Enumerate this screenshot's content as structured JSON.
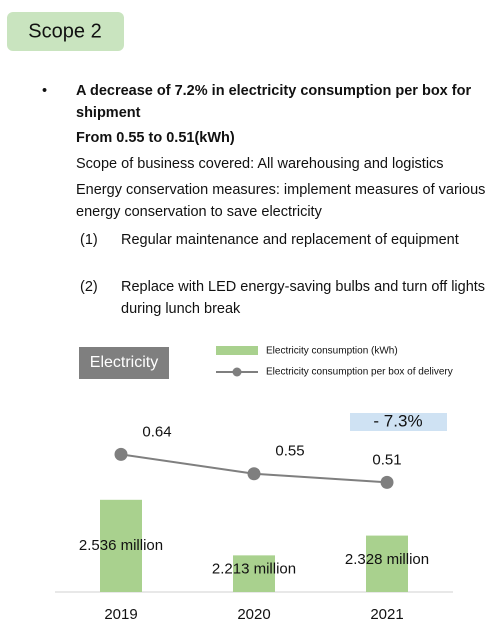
{
  "header": {
    "title": "Scope 2"
  },
  "highlights": {
    "headline": "A decrease of 7.2% in electricity consumption per box for shipment",
    "detail": "From 0.55 to 0.51(kWh)",
    "scope": "Scope of business covered: All warehousing and logistics",
    "measures": "Energy conservation measures: implement measures of various energy conservation to save electricity",
    "items": [
      {
        "number": "(1)",
        "text": "Regular maintenance and replacement of equipment"
      },
      {
        "number": "(2)",
        "text": "Replace with LED energy-saving bulbs and turn off lights during lunch break"
      }
    ]
  },
  "chart_data": {
    "type": "combo",
    "badge": "Electricity",
    "annotation": "- 7.3%",
    "categories": [
      "2019",
      "2020",
      "2021"
    ],
    "series": [
      {
        "name": "Electricity consumption (kWh)",
        "type": "bar",
        "color": "#a9d18e",
        "values": [
          2.536,
          2.213,
          2.328
        ],
        "value_labels": [
          "2.536 million",
          "2.213 million",
          "2.328 million"
        ]
      },
      {
        "name": "Electricity consumption per box of delivery",
        "type": "line",
        "axis": "y2",
        "color": "#7f7f7f",
        "values": [
          0.64,
          0.55,
          0.51
        ]
      }
    ],
    "ylim": [
      2,
      3
    ],
    "y2lim": [
      0,
      0.8
    ]
  }
}
